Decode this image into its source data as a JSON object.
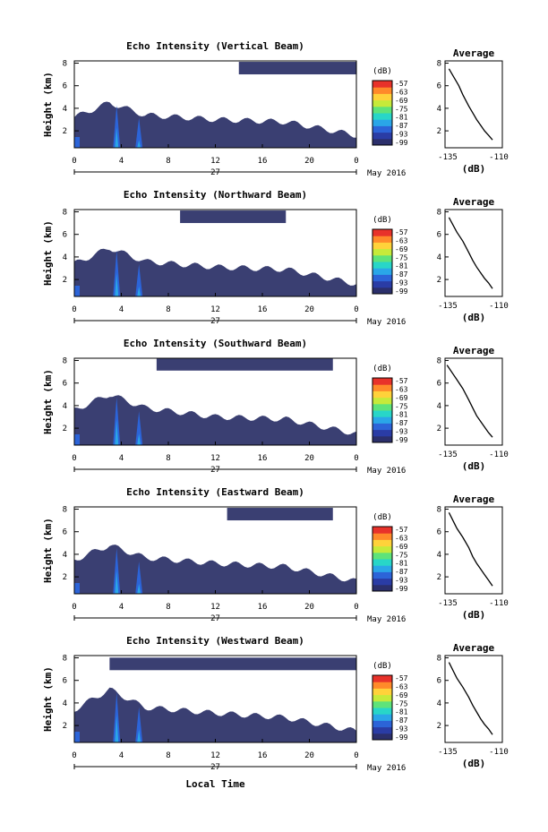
{
  "figure": {
    "colorbar_unit": "(dB)",
    "colorbar_ticks": [
      "-57",
      "-63",
      "-69",
      "-75",
      "-81",
      "-87",
      "-93",
      "-99"
    ],
    "colorbar_colors": [
      "#2b2f6b",
      "#2a3ca5",
      "#2c64d8",
      "#2aa6e8",
      "#28d6c8",
      "#5ee37a",
      "#c6ea3a",
      "#ffd23a",
      "#ff8a2a",
      "#e8322a"
    ],
    "background_color": "#3a3f72",
    "x_ticks": [
      "0",
      "4",
      "8",
      "12",
      "16",
      "20",
      "0"
    ],
    "date_center": "27",
    "date_right": "May 2016",
    "ylabel": "Height (km)",
    "y_ticks": [
      "2",
      "4",
      "6",
      "8"
    ],
    "xlabel": "Local Time",
    "avg_title": "Average",
    "avg_x_ticks": [
      "-135",
      "-110"
    ],
    "avg_xlabel": "(dB)",
    "avg_y_ticks": [
      "2",
      "4",
      "6",
      "8"
    ]
  },
  "chart_data": [
    {
      "type": "heatmap",
      "title": "Echo Intensity (Vertical Beam)",
      "x_range_hours": [
        0,
        24
      ],
      "ylim_km": [
        0.5,
        8.2
      ],
      "cloud_top_km": [
        [
          0,
          3.2
        ],
        [
          3,
          4.5
        ],
        [
          6,
          3.4
        ],
        [
          12,
          3.0
        ],
        [
          18,
          2.8
        ],
        [
          24,
          1.6
        ]
      ],
      "patch_km": [
        [
          14,
          7.8
        ],
        [
          24,
          7.8
        ]
      ],
      "profile": {
        "type": "line",
        "x_db": [
          -135,
          -130,
          -128,
          -125,
          -123,
          -121,
          -119,
          -117,
          -115,
          -113
        ],
        "y_km": [
          7.5,
          6.0,
          5.2,
          4.2,
          3.6,
          3.0,
          2.5,
          2.0,
          1.6,
          1.2
        ],
        "xlim": [
          -137,
          -108
        ]
      }
    },
    {
      "type": "heatmap",
      "title": "Echo Intensity (Northward Beam)",
      "x_range_hours": [
        0,
        24
      ],
      "ylim_km": [
        0.5,
        8.2
      ],
      "cloud_top_km": [
        [
          0,
          3.4
        ],
        [
          3,
          4.8
        ],
        [
          6,
          3.6
        ],
        [
          12,
          3.1
        ],
        [
          18,
          2.9
        ],
        [
          24,
          1.6
        ]
      ],
      "patch_km": [
        [
          9,
          7.5
        ],
        [
          18,
          7.8
        ]
      ],
      "profile": {
        "type": "line",
        "x_db": [
          -135,
          -131,
          -128,
          -125,
          -123,
          -121,
          -119,
          -117,
          -115,
          -113
        ],
        "y_km": [
          7.5,
          6.2,
          5.4,
          4.4,
          3.7,
          3.1,
          2.6,
          2.1,
          1.7,
          1.2
        ],
        "xlim": [
          -137,
          -108
        ]
      }
    },
    {
      "type": "heatmap",
      "title": "Echo Intensity (Southward Beam)",
      "x_range_hours": [
        0,
        24
      ],
      "ylim_km": [
        0.5,
        8.2
      ],
      "cloud_top_km": [
        [
          0,
          3.6
        ],
        [
          3,
          5.0
        ],
        [
          6,
          3.8
        ],
        [
          12,
          3.0
        ],
        [
          18,
          2.8
        ],
        [
          24,
          1.5
        ]
      ],
      "patch_km": [
        [
          7,
          7.8
        ],
        [
          22,
          7.9
        ]
      ],
      "profile": {
        "type": "line",
        "x_db": [
          -136,
          -131,
          -128,
          -125,
          -123,
          -121,
          -119,
          -117,
          -115,
          -113
        ],
        "y_km": [
          7.6,
          6.3,
          5.5,
          4.5,
          3.8,
          3.1,
          2.6,
          2.1,
          1.6,
          1.2
        ],
        "xlim": [
          -137,
          -108
        ]
      }
    },
    {
      "type": "heatmap",
      "title": "Echo Intensity (Eastward Beam)",
      "x_range_hours": [
        0,
        24
      ],
      "ylim_km": [
        0.5,
        8.2
      ],
      "cloud_top_km": [
        [
          0,
          3.5
        ],
        [
          3,
          4.8
        ],
        [
          6,
          3.7
        ],
        [
          12,
          3.2
        ],
        [
          18,
          2.9
        ],
        [
          24,
          1.6
        ]
      ],
      "patch_km": [
        [
          13,
          7.8
        ],
        [
          22,
          7.8
        ]
      ],
      "profile": {
        "type": "line",
        "x_db": [
          -135,
          -131,
          -128,
          -125,
          -123,
          -121,
          -119,
          -117,
          -115,
          -113
        ],
        "y_km": [
          7.7,
          6.3,
          5.5,
          4.6,
          3.8,
          3.2,
          2.7,
          2.2,
          1.7,
          1.2
        ],
        "xlim": [
          -137,
          -108
        ]
      }
    },
    {
      "type": "heatmap",
      "title": "Echo Intensity (Westward Beam)",
      "x_range_hours": [
        0,
        24
      ],
      "ylim_km": [
        0.5,
        8.2
      ],
      "cloud_top_km": [
        [
          0,
          3.4
        ],
        [
          3,
          5.2
        ],
        [
          6,
          3.6
        ],
        [
          12,
          3.1
        ],
        [
          18,
          2.7
        ],
        [
          24,
          1.5
        ]
      ],
      "patch_km": [
        [
          3,
          7.5
        ],
        [
          24,
          7.7
        ]
      ],
      "profile": {
        "type": "line",
        "x_db": [
          -135,
          -131,
          -128,
          -125,
          -123,
          -121,
          -119,
          -117,
          -115,
          -113
        ],
        "y_km": [
          7.6,
          6.2,
          5.4,
          4.5,
          3.8,
          3.2,
          2.6,
          2.1,
          1.7,
          1.2
        ],
        "xlim": [
          -137,
          -108
        ]
      }
    }
  ]
}
